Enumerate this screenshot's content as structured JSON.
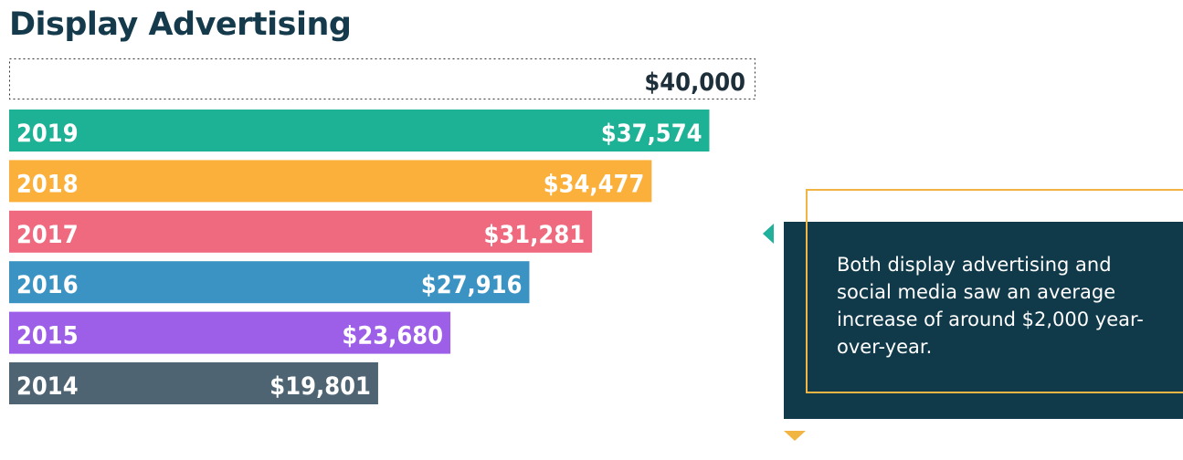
{
  "chart_data": {
    "type": "bar",
    "orientation": "horizontal",
    "title": "Display Advertising",
    "reference": {
      "value": 40000,
      "label": "$40,000"
    },
    "categories": [
      "2019",
      "2018",
      "2017",
      "2016",
      "2015",
      "2014"
    ],
    "values": [
      37574,
      34477,
      31281,
      27916,
      23680,
      19801
    ],
    "value_labels": [
      "$37,574",
      "$34,477",
      "$31,281",
      "$27,916",
      "$23,680",
      "$19,801"
    ],
    "colors": [
      "#1db196",
      "#fbb03b",
      "#ef6a7e",
      "#3a93c3",
      "#9d5ee8",
      "#4e6472"
    ],
    "xlim": [
      0,
      40000
    ],
    "grid": false,
    "legend": "none"
  },
  "callout": {
    "text": "Both display advertising and social media saw an average increase of around $2,000 year-over-year.",
    "accent_teal": "#20b09b",
    "accent_gold": "#f2b544",
    "background": "#10394a"
  },
  "title_color": "#143a4c"
}
